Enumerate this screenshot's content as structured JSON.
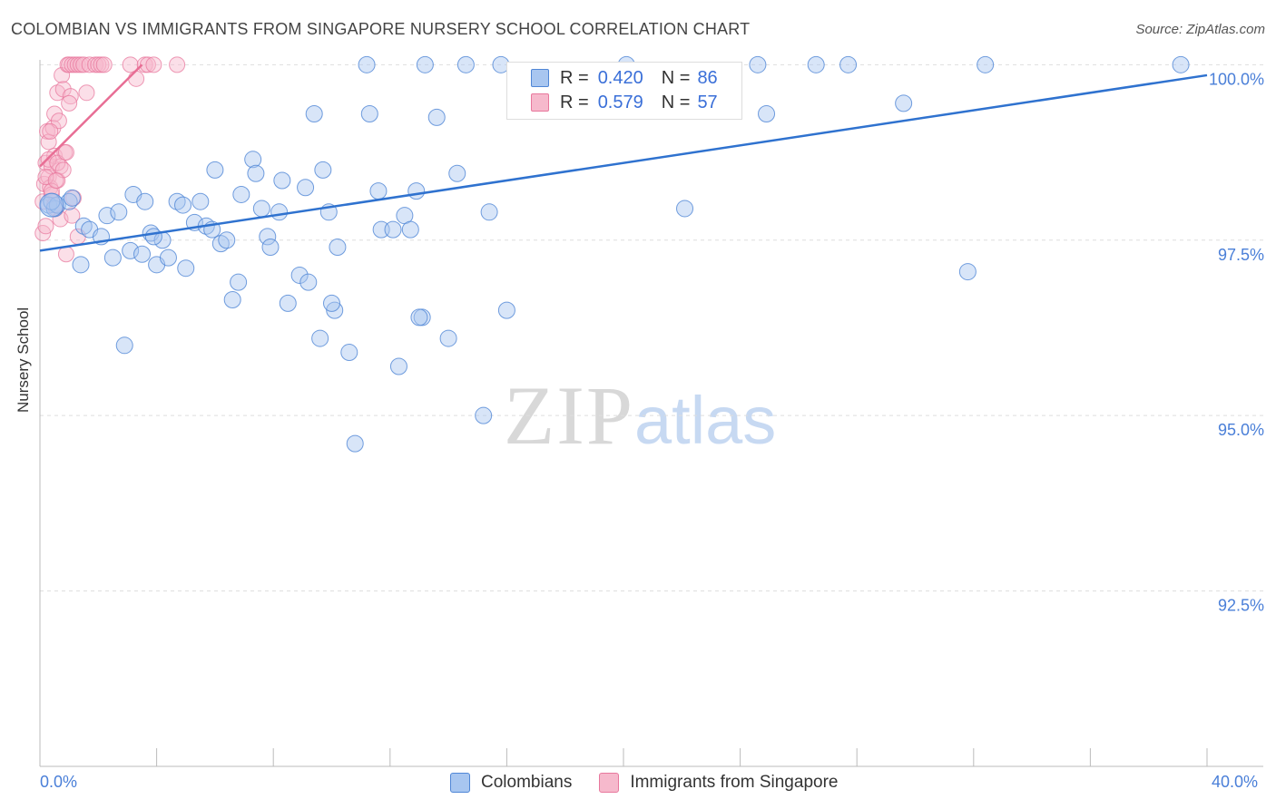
{
  "title": "COLOMBIAN VS IMMIGRANTS FROM SINGAPORE NURSERY SCHOOL CORRELATION CHART",
  "source": "Source: ZipAtlas.com",
  "watermark": {
    "zip": "ZIP",
    "atlas": "atlas"
  },
  "legend": {
    "series1": {
      "r_label": "R =",
      "r_value": "0.420",
      "n_label": "N =",
      "n_value": "86"
    },
    "series2": {
      "r_label": "R =",
      "r_value": "0.579",
      "n_label": "N =",
      "n_value": "57"
    }
  },
  "bottom_legend": {
    "series1": "Colombians",
    "series2": "Immigrants from Singapore"
  },
  "colors": {
    "blue_fill": "#a8c6f0",
    "blue_stroke": "#4f86d6",
    "blue_line": "#2f72cf",
    "pink_fill": "#f6b9cc",
    "pink_stroke": "#e8789d",
    "pink_line": "#e86e95",
    "grid": "#dddddd",
    "tick_label": "#4a7fd8"
  },
  "chart_data": {
    "type": "scatter",
    "title": "COLOMBIAN VS IMMIGRANTS FROM SINGAPORE NURSERY SCHOOL CORRELATION CHART",
    "xlabel": "",
    "ylabel": "Nursery School",
    "xlim": [
      0,
      40
    ],
    "ylim": [
      90.0,
      100.25
    ],
    "x_tick_labels": {
      "min": "0.0%",
      "max": "40.0%"
    },
    "y_ticks": [
      {
        "value": 100.0,
        "label": "100.0%"
      },
      {
        "value": 97.5,
        "label": "97.5%"
      },
      {
        "value": 95.0,
        "label": "95.0%"
      },
      {
        "value": 92.5,
        "label": "92.5%"
      }
    ],
    "series": [
      {
        "name": "Colombians",
        "r": 0.42,
        "n": 86,
        "trend": {
          "x": [
            0,
            40
          ],
          "y": [
            97.35,
            99.85
          ]
        },
        "points": [
          [
            0.3,
            98.0
          ],
          [
            0.5,
            97.95
          ],
          [
            0.6,
            98.0
          ],
          [
            1.0,
            98.05
          ],
          [
            1.4,
            97.15
          ],
          [
            1.5,
            97.7
          ],
          [
            1.7,
            97.65
          ],
          [
            2.1,
            97.55
          ],
          [
            2.3,
            97.85
          ],
          [
            2.5,
            97.25
          ],
          [
            2.7,
            97.9
          ],
          [
            2.9,
            96.0
          ],
          [
            3.1,
            97.35
          ],
          [
            3.2,
            98.15
          ],
          [
            3.5,
            97.3
          ],
          [
            3.6,
            98.05
          ],
          [
            3.8,
            97.6
          ],
          [
            4.0,
            97.15
          ],
          [
            4.2,
            97.5
          ],
          [
            4.4,
            97.25
          ],
          [
            4.7,
            98.05
          ],
          [
            4.9,
            98.0
          ],
          [
            5.0,
            97.1
          ],
          [
            5.3,
            97.75
          ],
          [
            5.5,
            98.05
          ],
          [
            5.7,
            97.7
          ],
          [
            5.9,
            97.65
          ],
          [
            6.0,
            98.5
          ],
          [
            6.2,
            97.45
          ],
          [
            6.4,
            97.5
          ],
          [
            6.6,
            96.65
          ],
          [
            6.8,
            96.9
          ],
          [
            6.9,
            98.15
          ],
          [
            7.3,
            98.65
          ],
          [
            7.4,
            98.45
          ],
          [
            7.6,
            97.95
          ],
          [
            7.8,
            97.55
          ],
          [
            7.9,
            97.4
          ],
          [
            8.2,
            97.9
          ],
          [
            8.3,
            98.35
          ],
          [
            8.5,
            96.6
          ],
          [
            8.9,
            97.0
          ],
          [
            9.1,
            98.25
          ],
          [
            9.2,
            96.9
          ],
          [
            9.4,
            99.3
          ],
          [
            9.6,
            96.1
          ],
          [
            9.7,
            98.5
          ],
          [
            9.9,
            97.9
          ],
          [
            10.1,
            96.5
          ],
          [
            10.2,
            97.4
          ],
          [
            10.6,
            95.9
          ],
          [
            10.8,
            94.6
          ],
          [
            11.2,
            100.0
          ],
          [
            11.3,
            99.3
          ],
          [
            11.6,
            98.2
          ],
          [
            11.7,
            97.65
          ],
          [
            12.1,
            97.65
          ],
          [
            12.3,
            95.7
          ],
          [
            12.5,
            97.85
          ],
          [
            12.7,
            97.65
          ],
          [
            12.9,
            98.2
          ],
          [
            13.1,
            96.4
          ],
          [
            13.2,
            100.0
          ],
          [
            13.6,
            99.25
          ],
          [
            14.0,
            96.1
          ],
          [
            14.3,
            98.45
          ],
          [
            14.6,
            100.0
          ],
          [
            15.2,
            95.0
          ],
          [
            15.4,
            97.9
          ],
          [
            15.8,
            100.0
          ],
          [
            16.0,
            96.5
          ],
          [
            20.1,
            100.0
          ],
          [
            22.1,
            97.95
          ],
          [
            24.6,
            100.0
          ],
          [
            24.9,
            99.3
          ],
          [
            26.6,
            100.0
          ],
          [
            27.7,
            100.0
          ],
          [
            29.6,
            99.45
          ],
          [
            31.8,
            97.05
          ],
          [
            32.4,
            100.0
          ],
          [
            39.1,
            100.0
          ],
          [
            0.4,
            98.05
          ],
          [
            1.1,
            98.1
          ],
          [
            3.9,
            97.55
          ],
          [
            10.0,
            96.6
          ],
          [
            13.0,
            96.4
          ]
        ]
      },
      {
        "name": "Immigrants from Singapore",
        "r": 0.579,
        "n": 57,
        "trend": {
          "x": [
            0,
            3.5
          ],
          "y": [
            98.55,
            100.0
          ]
        },
        "points": [
          [
            0.1,
            97.6
          ],
          [
            0.1,
            98.05
          ],
          [
            0.15,
            98.3
          ],
          [
            0.2,
            97.7
          ],
          [
            0.2,
            98.6
          ],
          [
            0.25,
            99.05
          ],
          [
            0.3,
            98.4
          ],
          [
            0.3,
            98.9
          ],
          [
            0.35,
            98.25
          ],
          [
            0.4,
            98.15
          ],
          [
            0.4,
            98.55
          ],
          [
            0.45,
            99.1
          ],
          [
            0.5,
            99.3
          ],
          [
            0.5,
            98.7
          ],
          [
            0.55,
            97.95
          ],
          [
            0.6,
            99.6
          ],
          [
            0.6,
            98.35
          ],
          [
            0.65,
            99.2
          ],
          [
            0.7,
            98.55
          ],
          [
            0.75,
            99.85
          ],
          [
            0.8,
            99.65
          ],
          [
            0.85,
            98.75
          ],
          [
            0.9,
            97.3
          ],
          [
            0.95,
            100.0
          ],
          [
            1.0,
            100.0
          ],
          [
            1.05,
            99.55
          ],
          [
            1.1,
            100.0
          ],
          [
            1.15,
            98.1
          ],
          [
            1.2,
            100.0
          ],
          [
            1.3,
            100.0
          ],
          [
            1.4,
            100.0
          ],
          [
            1.5,
            100.0
          ],
          [
            1.6,
            99.6
          ],
          [
            1.7,
            100.0
          ],
          [
            1.9,
            100.0
          ],
          [
            2.0,
            100.0
          ],
          [
            2.1,
            100.0
          ],
          [
            2.2,
            100.0
          ],
          [
            3.1,
            100.0
          ],
          [
            3.3,
            99.8
          ],
          [
            3.6,
            100.0
          ],
          [
            3.7,
            100.0
          ],
          [
            3.9,
            100.0
          ],
          [
            4.7,
            100.0
          ],
          [
            0.2,
            98.4
          ],
          [
            0.3,
            98.65
          ],
          [
            0.4,
            98.2
          ],
          [
            0.5,
            98.0
          ],
          [
            0.6,
            98.6
          ],
          [
            0.7,
            97.8
          ],
          [
            0.8,
            98.5
          ],
          [
            0.9,
            98.75
          ],
          [
            1.0,
            99.45
          ],
          [
            1.1,
            97.85
          ],
          [
            0.35,
            99.05
          ],
          [
            0.55,
            98.35
          ],
          [
            1.3,
            97.55
          ]
        ]
      }
    ]
  }
}
